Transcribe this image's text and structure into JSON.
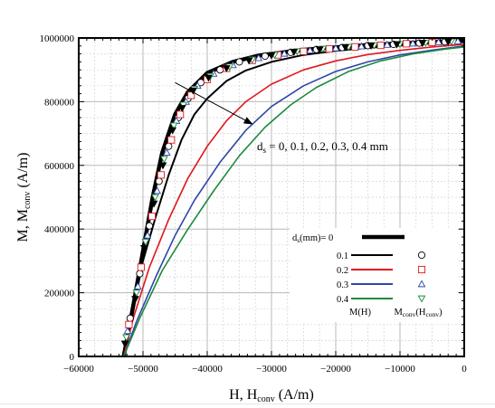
{
  "chart_data": {
    "type": "line",
    "xlabel": "H, H",
    "xlabel_sub": "conv",
    "xlabel_tail": " (A/m)",
    "ylabel": "M, M",
    "ylabel_sub": "conv",
    "ylabel_tail": " (A/m)",
    "xlim": [
      -60000,
      0
    ],
    "ylim": [
      0,
      1000000
    ],
    "xticks": [
      -60000,
      -50000,
      -40000,
      -30000,
      -20000,
      -10000,
      0
    ],
    "xtick_labels": [
      "−60000",
      "−50000",
      "−40000",
      "−30000",
      "−20000",
      "−10000",
      "0"
    ],
    "yticks": [
      0,
      200000,
      400000,
      600000,
      800000,
      1000000
    ],
    "ytick_labels": [
      "0",
      "200000",
      "400000",
      "600000",
      "800000",
      "1000000"
    ],
    "grid": true,
    "annotation": {
      "prefix": "d",
      "sub": "s",
      "text": " = 0, 0.1, 0.2, 0.3, 0.4 mm",
      "arrow_from": [
        -45000,
        860000
      ],
      "arrow_to": [
        -33000,
        730000
      ]
    },
    "legend": {
      "position": "lower-right",
      "header_prefix": "d",
      "header_sub": "s",
      "header_text": "(mm)= 0",
      "col1_label": "M(H)",
      "col2_prefix": "M",
      "col2_sub": "conv",
      "col2_mid": "(H",
      "col2_sub2": "conv",
      "col2_tail": ")"
    },
    "series": [
      {
        "name": "0",
        "color": "#000000",
        "width": 4.5,
        "marker": "none",
        "x": [
          -53000,
          -51500,
          -50000,
          -48500,
          -47000,
          -45000,
          -43000,
          -40000,
          -36000,
          -32000,
          -25000,
          -15000,
          -5000,
          0
        ],
        "y": [
          0,
          160000,
          330000,
          500000,
          640000,
          760000,
          830000,
          890000,
          925000,
          945000,
          963000,
          978000,
          988000,
          992000
        ]
      },
      {
        "name": "0.1",
        "color": "#000000",
        "width": 2,
        "marker": "none",
        "x": [
          -53000,
          -51500,
          -50000,
          -48000,
          -46000,
          -44000,
          -42000,
          -40000,
          -37000,
          -34000,
          -30000,
          -25000,
          -20000,
          -15000,
          -10000,
          -5000,
          0
        ],
        "y": [
          0,
          150000,
          300000,
          440000,
          570000,
          680000,
          760000,
          810000,
          865000,
          898000,
          925000,
          947000,
          960000,
          969000,
          976000,
          983000,
          987000
        ]
      },
      {
        "name": "0.2",
        "color": "#e0161e",
        "width": 1.6,
        "marker": "none",
        "x": [
          -53000,
          -51500,
          -49000,
          -46000,
          -43000,
          -40000,
          -37000,
          -34000,
          -30000,
          -25000,
          -20000,
          -15000,
          -10000,
          -5000,
          0
        ],
        "y": [
          0,
          120000,
          280000,
          430000,
          560000,
          660000,
          740000,
          800000,
          855000,
          900000,
          928000,
          948000,
          961000,
          972000,
          980000
        ]
      },
      {
        "name": "0.3",
        "color": "#3046a8",
        "width": 1.6,
        "marker": "none",
        "x": [
          -53000,
          -51000,
          -48000,
          -45000,
          -42000,
          -38000,
          -34000,
          -30000,
          -25000,
          -20000,
          -15000,
          -10000,
          -5000,
          0
        ],
        "y": [
          0,
          110000,
          250000,
          380000,
          490000,
          610000,
          710000,
          785000,
          850000,
          895000,
          925000,
          947000,
          962000,
          975000
        ]
      },
      {
        "name": "0.4",
        "color": "#1a8a3c",
        "width": 1.6,
        "marker": "none",
        "x": [
          -53000,
          -50500,
          -47000,
          -43000,
          -39000,
          -35000,
          -31000,
          -27000,
          -23000,
          -18000,
          -13000,
          -8000,
          -3000,
          0
        ],
        "y": [
          0,
          120000,
          270000,
          400000,
          520000,
          630000,
          720000,
          790000,
          845000,
          895000,
          928000,
          950000,
          965000,
          972000
        ]
      },
      {
        "name": "0",
        "color": "#000000",
        "marker": "circle",
        "legend": false,
        "x": [
          -52000,
          -50500,
          -49000,
          -47500,
          -46000,
          -44500,
          -43000,
          -41000,
          -38000,
          -35000,
          -31000,
          -27000,
          -23000,
          -19000,
          -15000,
          -11000,
          -7000,
          -3000
        ],
        "y": [
          120000,
          260000,
          410000,
          550000,
          660000,
          750000,
          810000,
          860000,
          900000,
          925000,
          943000,
          955000,
          964000,
          970000,
          976000,
          980000,
          984000,
          988000
        ]
      },
      {
        "name": "0.1",
        "color": "#e0161e",
        "marker": "square",
        "legend": false,
        "x": [
          -52200,
          -50300,
          -48600,
          -47200,
          -45600,
          -44200,
          -42500,
          -40000,
          -37000,
          -33000,
          -29000,
          -25000,
          -21000,
          -17000,
          -13000,
          -9000,
          -5000,
          -1500
        ],
        "y": [
          100000,
          280000,
          440000,
          570000,
          680000,
          760000,
          820000,
          870000,
          905000,
          930000,
          947000,
          958000,
          966000,
          972000,
          977000,
          982000,
          986000,
          989000
        ]
      },
      {
        "name": "0.2",
        "color": "#3046a8",
        "marker": "triangle-up",
        "legend": false,
        "x": [
          -52400,
          -50800,
          -49300,
          -47800,
          -46300,
          -44800,
          -43300,
          -41500,
          -39000,
          -36000,
          -32000,
          -28000,
          -24000,
          -20000,
          -16000,
          -12000,
          -8000,
          -4000,
          -1000
        ],
        "y": [
          80000,
          220000,
          380000,
          520000,
          640000,
          740000,
          800000,
          850000,
          888000,
          915000,
          937000,
          951000,
          961000,
          968000,
          974000,
          979000,
          983000,
          987000,
          990000
        ]
      },
      {
        "name": "0.3",
        "color": "#1a8a3c",
        "marker": "triangle-down",
        "legend": false,
        "x": [
          -52600,
          -51000,
          -49600,
          -48100,
          -46700,
          -45200,
          -43700,
          -42000,
          -39500,
          -36500,
          -33000,
          -29500,
          -26000,
          -22000,
          -18000,
          -14000,
          -10000,
          -6000,
          -2000
        ],
        "y": [
          60000,
          200000,
          360000,
          500000,
          620000,
          725000,
          790000,
          840000,
          880000,
          910000,
          932000,
          947000,
          958000,
          966000,
          972000,
          977000,
          981000,
          985000,
          989000
        ]
      },
      {
        "name": "0.4",
        "color": "#000000",
        "marker": "triangle-down-filled",
        "legend": false,
        "x": [
          -52800,
          -51200,
          -49800,
          -48300,
          -46900,
          -45400,
          -43900,
          -42200,
          -39800,
          -37000,
          -33500,
          -30000,
          -26500,
          -22500,
          -18500,
          -14500,
          -10500,
          -6500,
          -2500
        ],
        "y": [
          40000,
          180000,
          340000,
          480000,
          600000,
          710000,
          780000,
          835000,
          875000,
          905000,
          929000,
          945000,
          956000,
          964000,
          971000,
          976000,
          980000,
          984000,
          988000
        ]
      }
    ]
  }
}
